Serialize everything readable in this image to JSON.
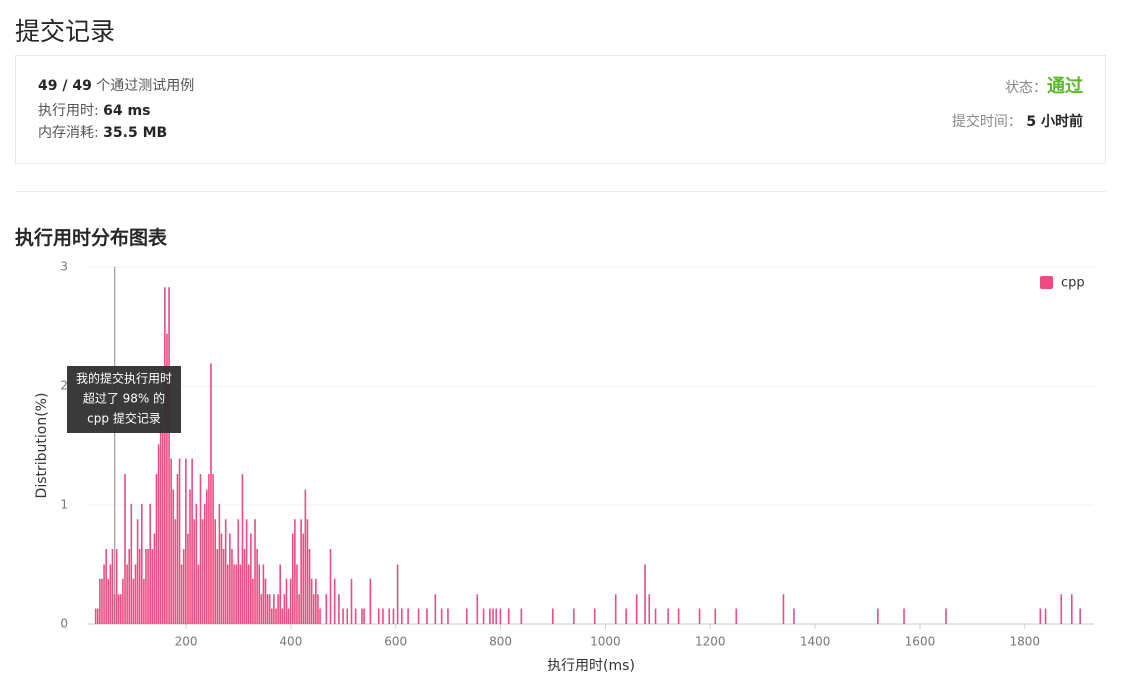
{
  "header": {
    "title": "提交记录"
  },
  "summary": {
    "passed": "49 / 49",
    "passed_text": "个通过测试用例",
    "runtime_label": "执行用时:",
    "runtime": "64 ms",
    "memory_label": "内存消耗:",
    "memory": "35.5 MB",
    "status_label": "状态：",
    "status": "通过",
    "time_label": "提交时间：",
    "time": "5 小时前"
  },
  "chart_data": {
    "type": "bar",
    "title": "执行用时分布图表",
    "x_label": "执行用时(ms)",
    "y_label": "Distribution(%)",
    "x": [
      28,
      32,
      36,
      40,
      44,
      48,
      52,
      56,
      60,
      64,
      68,
      72,
      76,
      80,
      84,
      88,
      92,
      96,
      100,
      104,
      108,
      112,
      116,
      120,
      124,
      128,
      132,
      136,
      140,
      144,
      148,
      152,
      156,
      160,
      164,
      168,
      172,
      176,
      180,
      184,
      188,
      192,
      196,
      200,
      204,
      208,
      212,
      216,
      220,
      224,
      228,
      232,
      236,
      240,
      244,
      248,
      252,
      256,
      260,
      264,
      268,
      272,
      276,
      280,
      284,
      288,
      292,
      296,
      300,
      304,
      308,
      312,
      316,
      320,
      324,
      328,
      332,
      336,
      340,
      344,
      348,
      352,
      356,
      360,
      364,
      368,
      372,
      376,
      380,
      384,
      388,
      392,
      396,
      400,
      404,
      408,
      412,
      416,
      420,
      424,
      428,
      432,
      436,
      440,
      444,
      448,
      452,
      456,
      468,
      476,
      484,
      492,
      500,
      508,
      516,
      524,
      536,
      540,
      552,
      568,
      576,
      588,
      596,
      604,
      612,
      624,
      644,
      660,
      676,
      688,
      700,
      736,
      756,
      768,
      780,
      786,
      792,
      800,
      816,
      840,
      900,
      940,
      980,
      1020,
      1040,
      1060,
      1076,
      1084,
      1096,
      1120,
      1140,
      1180,
      1210,
      1250,
      1340,
      1360,
      1520,
      1570,
      1650,
      1830,
      1840,
      1870,
      1890,
      1906
    ],
    "series": [
      {
        "name": "cpp",
        "color": "#ec4c80",
        "values": [
          0.13,
          0.13,
          0.38,
          0.38,
          0.5,
          0.63,
          0.38,
          0.5,
          0.63,
          0.25,
          0.63,
          0.25,
          0.25,
          0.38,
          1.26,
          0.5,
          0.63,
          1.01,
          0.38,
          0.5,
          0.88,
          0.63,
          1.01,
          0.38,
          0.63,
          0.63,
          1.01,
          0.63,
          0.76,
          1.26,
          1.51,
          1.77,
          1.64,
          2.83,
          2.44,
          2.83,
          1.39,
          1.13,
          0.88,
          1.26,
          1.39,
          0.5,
          0.63,
          1.39,
          0.76,
          1.13,
          1.39,
          0.88,
          1.01,
          0.5,
          1.26,
          0.88,
          1.01,
          1.13,
          1.26,
          2.19,
          1.26,
          0.88,
          0.63,
          1.01,
          0.76,
          0.63,
          0.88,
          0.5,
          0.76,
          0.63,
          0.5,
          0.5,
          0.88,
          0.5,
          1.26,
          0.63,
          0.88,
          0.5,
          0.76,
          0.38,
          0.88,
          0.63,
          0.5,
          0.25,
          0.5,
          0.38,
          0.25,
          0.25,
          0.13,
          0.25,
          0.13,
          0.25,
          0.5,
          0.13,
          0.25,
          0.38,
          0.13,
          0.38,
          0.76,
          0.88,
          0.5,
          0.25,
          0.88,
          0.76,
          1.13,
          0.88,
          0.63,
          0.38,
          0.25,
          0.38,
          0.25,
          0.13,
          0.25,
          0.63,
          0.38,
          0.25,
          0.13,
          0.13,
          0.38,
          0.13,
          0.13,
          0.13,
          0.38,
          0.13,
          0.13,
          0.13,
          0.13,
          0.5,
          0.13,
          0.13,
          0.13,
          0.13,
          0.25,
          0.13,
          0.13,
          0.13,
          0.25,
          0.13,
          0.13,
          0.13,
          0.13,
          0.13,
          0.13,
          0.13,
          0.13,
          0.13,
          0.13,
          0.25,
          0.13,
          0.25,
          0.5,
          0.25,
          0.13,
          0.13,
          0.13,
          0.13,
          0.13,
          0.13,
          0.25,
          0.13,
          0.13,
          0.13,
          0.13,
          0.13,
          0.13,
          0.25,
          0.25,
          0.13
        ]
      }
    ],
    "xlim": [
      13,
      1932
    ],
    "ylim": [
      0,
      3
    ],
    "xticks": [
      200,
      400,
      600,
      800,
      1000,
      1200,
      1400,
      1600,
      1800
    ],
    "yticks": [
      0,
      1,
      2,
      3
    ],
    "grid": true,
    "legend": "top-right",
    "annotation": {
      "x": 64,
      "lines": [
        "我的提交执行用时",
        "超过了 98% 的",
        "cpp 提交记录"
      ]
    }
  }
}
